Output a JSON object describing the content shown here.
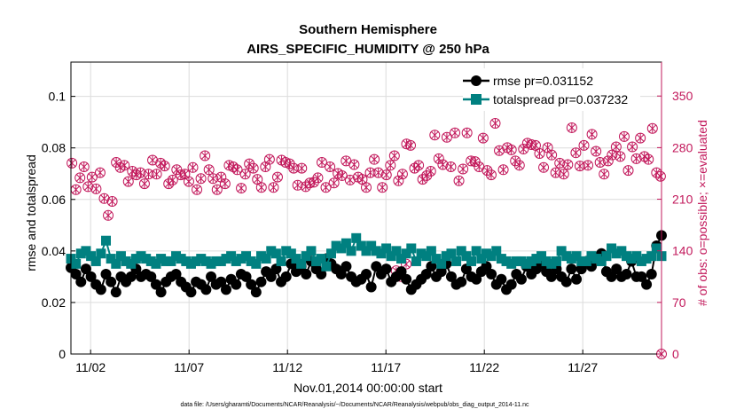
{
  "chart_data": {
    "type": "line",
    "title": "Southern Hemisphere",
    "subtitle": "AIRS_SPECIFIC_HUMIDITY @ 250 hPa",
    "xlabel": "Nov.01,2014 00:00:00 start",
    "ylabel_left": "rmse and totalspread",
    "ylabel_right": "# of obs: o=possible; ×=evaluated",
    "footnote": "data file: /Users/gharamti/Documents/NCAR/Reanalysis/~/Documents/NCAR/Reanalysis/webpub/obs_diag_output_2014-11.nc",
    "x_ticks": [
      {
        "day": 2,
        "label": "11/02"
      },
      {
        "day": 7,
        "label": "11/07"
      },
      {
        "day": 12,
        "label": "11/12"
      },
      {
        "day": 17,
        "label": "11/17"
      },
      {
        "day": 22,
        "label": "11/22"
      },
      {
        "day": 27,
        "label": "11/27"
      }
    ],
    "xlim": [
      1,
      31
    ],
    "ylim_left": [
      0,
      0.1133
    ],
    "yticks_left": [
      "0",
      "0.02",
      "0.04",
      "0.06",
      "0.08",
      "0.1"
    ],
    "ylim_right": [
      0,
      396
    ],
    "yticks_right": [
      "0",
      "70",
      "140",
      "210",
      "280",
      "350"
    ],
    "grid": true,
    "legend_position": "top-right",
    "colors": {
      "rmse": "#000000",
      "totalspread": "#008080",
      "obs": "#c2185b"
    },
    "series": [
      {
        "name": "rmse pr=0.031152",
        "axis": "left",
        "values": [
          0.0335,
          0.031,
          0.028,
          0.033,
          0.03,
          0.027,
          0.025,
          0.031,
          0.028,
          0.024,
          0.03,
          0.028,
          0.03,
          0.033,
          0.03,
          0.031,
          0.03,
          0.027,
          0.024,
          0.028,
          0.03,
          0.031,
          0.028,
          0.026,
          0.024,
          0.028,
          0.027,
          0.025,
          0.03,
          0.027,
          0.028,
          0.025,
          0.029,
          0.027,
          0.031,
          0.03,
          0.027,
          0.024,
          0.028,
          0.032,
          0.03,
          0.033,
          0.028,
          0.03,
          0.035,
          0.032,
          0.034,
          0.031,
          0.036,
          0.033,
          0.031,
          0.037,
          0.035,
          0.033,
          0.031,
          0.034,
          0.03,
          0.028,
          0.029,
          0.031,
          0.026,
          0.034,
          0.031,
          0.033,
          0.028,
          0.03,
          0.032,
          0.029,
          0.025,
          0.027,
          0.029,
          0.031,
          0.034,
          0.03,
          0.032,
          0.035,
          0.03,
          0.027,
          0.028,
          0.033,
          0.03,
          0.029,
          0.032,
          0.034,
          0.031,
          0.027,
          0.029,
          0.025,
          0.027,
          0.031,
          0.029,
          0.034,
          0.031,
          0.033,
          0.035,
          0.032,
          0.03,
          0.033,
          0.03,
          0.028,
          0.033,
          0.029,
          0.033,
          0.036,
          0.034,
          0.037,
          0.039,
          0.032,
          0.03,
          0.033,
          0.03,
          0.031,
          0.036,
          0.03,
          0.03,
          0.027,
          0.031,
          0.042,
          0.046
        ]
      },
      {
        "name": "totalspread pr=0.037232",
        "axis": "left",
        "values": [
          0.037,
          0.035,
          0.039,
          0.04,
          0.038,
          0.036,
          0.039,
          0.044,
          0.037,
          0.035,
          0.038,
          0.036,
          0.035,
          0.037,
          0.038,
          0.037,
          0.036,
          0.035,
          0.037,
          0.036,
          0.036,
          0.038,
          0.037,
          0.036,
          0.035,
          0.036,
          0.037,
          0.036,
          0.035,
          0.036,
          0.036,
          0.037,
          0.038,
          0.036,
          0.037,
          0.038,
          0.036,
          0.035,
          0.038,
          0.037,
          0.04,
          0.039,
          0.036,
          0.04,
          0.039,
          0.037,
          0.035,
          0.038,
          0.04,
          0.036,
          0.037,
          0.034,
          0.039,
          0.042,
          0.041,
          0.043,
          0.04,
          0.045,
          0.042,
          0.04,
          0.042,
          0.04,
          0.039,
          0.041,
          0.038,
          0.04,
          0.037,
          0.039,
          0.041,
          0.036,
          0.039,
          0.038,
          0.04,
          0.037,
          0.035,
          0.038,
          0.039,
          0.036,
          0.04,
          0.038,
          0.036,
          0.04,
          0.037,
          0.039,
          0.038,
          0.04,
          0.037,
          0.036,
          0.035,
          0.036,
          0.036,
          0.035,
          0.036,
          0.037,
          0.038,
          0.036,
          0.035,
          0.036,
          0.04,
          0.038,
          0.037,
          0.038,
          0.036,
          0.036,
          0.038,
          0.037,
          0.036,
          0.038,
          0.041,
          0.039,
          0.04,
          0.038,
          0.037,
          0.038,
          0.036,
          0.037,
          0.038,
          0.041,
          0.038
        ]
      },
      {
        "name": "# of obs possible",
        "axis": "right",
        "marker": "o",
        "values": [
          259,
          223,
          239,
          254,
          227,
          240,
          224,
          246,
          211,
          188,
          207,
          260,
          253,
          256,
          234,
          248,
          243,
          246,
          231,
          244,
          263,
          244,
          259,
          255,
          231,
          236,
          250,
          243,
          244,
          234,
          253,
          223,
          238,
          269,
          250,
          238,
          223,
          240,
          231,
          256,
          254,
          250,
          225,
          244,
          258,
          252,
          237,
          226,
          254,
          264,
          226,
          240,
          263,
          260,
          258,
          252,
          229,
          252,
          227,
          232,
          233,
          239,
          260,
          226,
          254,
          232,
          245,
          242,
          262,
          236,
          257,
          240,
          237,
          226,
          246,
          264,
          246,
          226,
          243,
          256,
          269,
          235,
          244,
          285,
          283,
          252,
          256,
          237,
          242,
          248,
          297,
          265,
          257,
          294,
          254,
          300,
          235,
          251,
          300,
          262,
          261,
          254,
          293,
          249,
          243,
          313,
          276,
          250,
          280,
          277,
          262,
          256,
          278,
          286,
          284,
          283,
          272,
          253,
          280,
          270,
          246,
          259,
          244,
          257,
          307,
          273,
          255,
          283,
          256,
          298,
          275,
          260,
          244,
          262,
          270,
          281,
          268,
          295,
          249,
          281,
          265,
          293,
          268,
          264,
          306,
          246,
          241
        ]
      },
      {
        "name": "# of obs evaluated",
        "axis": "right",
        "marker": "x",
        "values": [
          259,
          223,
          239,
          254,
          227,
          240,
          224,
          246,
          211,
          188,
          207,
          260,
          253,
          256,
          234,
          248,
          243,
          246,
          231,
          244,
          263,
          244,
          259,
          255,
          231,
          236,
          250,
          243,
          244,
          234,
          253,
          223,
          238,
          269,
          250,
          238,
          223,
          240,
          231,
          256,
          254,
          250,
          225,
          244,
          258,
          252,
          237,
          226,
          254,
          264,
          226,
          240,
          263,
          260,
          258,
          252,
          229,
          252,
          227,
          232,
          233,
          239,
          260,
          226,
          254,
          232,
          245,
          242,
          262,
          236,
          257,
          240,
          237,
          226,
          246,
          264,
          246,
          226,
          243,
          256,
          269,
          235,
          244,
          285,
          283,
          252,
          256,
          237,
          242,
          248,
          297,
          265,
          257,
          294,
          254,
          300,
          235,
          251,
          300,
          262,
          261,
          254,
          293,
          249,
          243,
          313,
          276,
          250,
          280,
          277,
          262,
          256,
          278,
          286,
          284,
          283,
          272,
          253,
          280,
          270,
          246,
          259,
          244,
          257,
          307,
          273,
          255,
          283,
          256,
          298,
          275,
          260,
          244,
          262,
          270,
          281,
          268,
          295,
          249,
          281,
          265,
          293,
          268,
          264,
          306,
          246,
          241
        ]
      }
    ],
    "obs_outliers": [
      {
        "day_index": 65,
        "value": 113
      },
      {
        "day_index": 66,
        "value": 105
      },
      {
        "day_index": 67,
        "value": 122
      },
      {
        "day_index": 118,
        "value": 0
      }
    ]
  }
}
